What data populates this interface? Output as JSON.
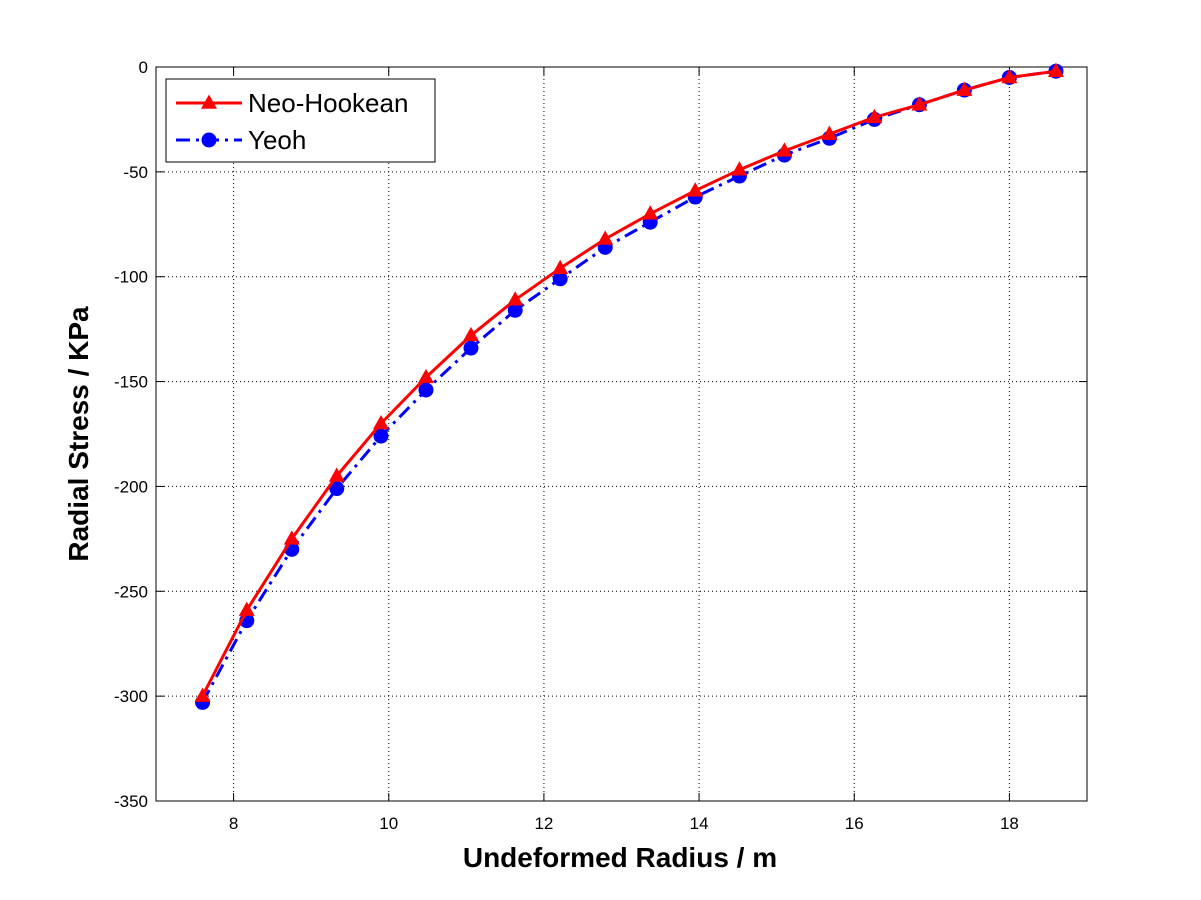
{
  "chart_data": {
    "type": "line",
    "title": "",
    "xlabel": "Undeformed Radius / m",
    "ylabel": "Radial Stress / KPa",
    "xlim": [
      7,
      19
    ],
    "ylim": [
      -350,
      0
    ],
    "xticks": [
      8,
      10,
      12,
      14,
      16,
      18
    ],
    "yticks": [
      0,
      -50,
      -100,
      -150,
      -200,
      -250,
      -300,
      -350
    ],
    "grid": true,
    "legend_position": "top-left",
    "x": [
      7.6,
      8.17,
      8.75,
      9.33,
      9.9,
      10.48,
      11.06,
      11.63,
      12.21,
      12.79,
      13.37,
      13.95,
      14.52,
      15.1,
      15.68,
      16.26,
      16.84,
      17.42,
      18.0,
      18.6
    ],
    "series": [
      {
        "name": "Neo-Hookean",
        "color": "#ff0000",
        "line_style": "solid",
        "marker": "triangle",
        "values": [
          -300,
          -259,
          -225,
          -195,
          -170,
          -148,
          -128,
          -111,
          -96,
          -82,
          -70,
          -59,
          -49,
          -40,
          -32,
          -24,
          -18,
          -11,
          -5,
          -2
        ]
      },
      {
        "name": "Yeoh",
        "color": "#0000ff",
        "line_style": "dash-dot",
        "marker": "circle",
        "values": [
          -303,
          -264,
          -230,
          -201,
          -176,
          -154,
          -134,
          -116,
          -101,
          -86,
          -74,
          -62,
          -52,
          -42,
          -34,
          -25,
          -18,
          -11,
          -5,
          -2
        ]
      }
    ]
  }
}
